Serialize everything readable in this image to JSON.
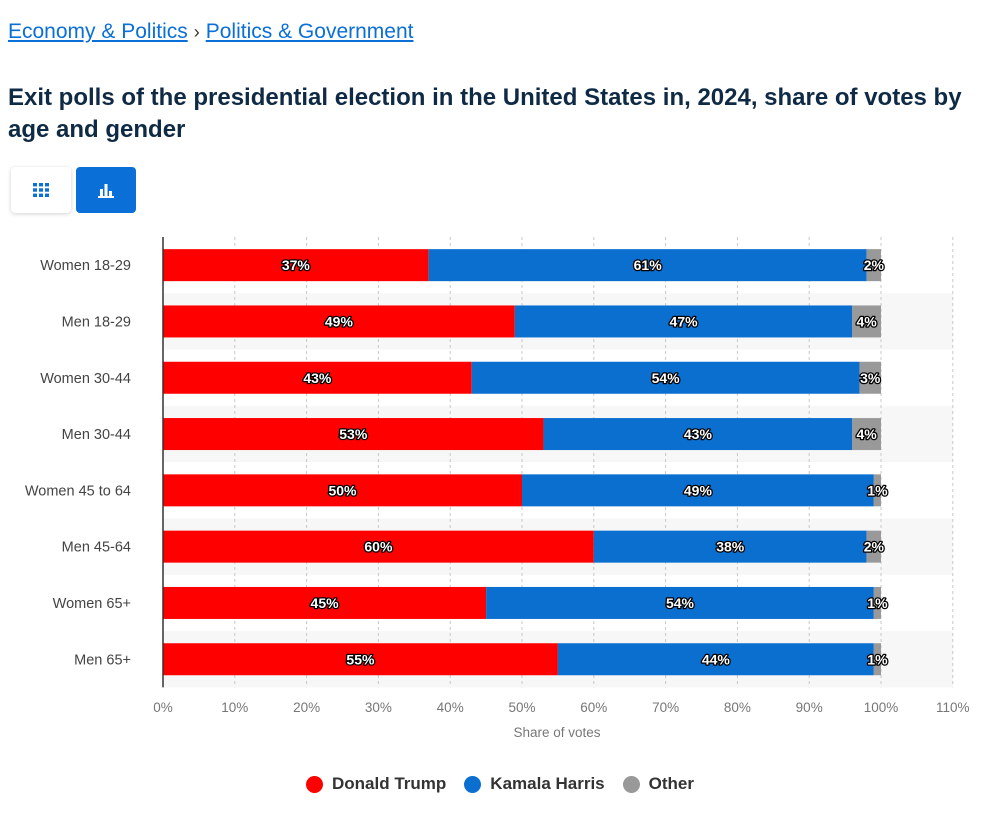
{
  "breadcrumb": {
    "item1": "Economy & Politics",
    "separator": "›",
    "item2": "Politics & Government"
  },
  "title": "Exit polls of the presidential election in the United States in, 2024, share of votes by age and gender",
  "view_toggle": {
    "table_icon": "grid-icon",
    "chart_icon": "bar-chart-icon"
  },
  "legend": [
    {
      "label": "Donald Trump",
      "color": "#ff0000"
    },
    {
      "label": "Kamala Harris",
      "color": "#0b6fd0"
    },
    {
      "label": "Other",
      "color": "#999999"
    }
  ],
  "chart_data": {
    "type": "bar",
    "orientation": "horizontal",
    "stacked": true,
    "categories": [
      "Women 18-29",
      "Men 18-29",
      "Women 30-44",
      "Men 30-44",
      "Women 45 to 64",
      "Men 45-64",
      "Women 65+",
      "Men 65+"
    ],
    "series": [
      {
        "name": "Donald Trump",
        "color": "#ff0000",
        "values": [
          37,
          49,
          43,
          53,
          50,
          60,
          45,
          55
        ]
      },
      {
        "name": "Kamala Harris",
        "color": "#0b6fd0",
        "values": [
          61,
          47,
          54,
          43,
          49,
          38,
          54,
          44
        ]
      },
      {
        "name": "Other",
        "color": "#999999",
        "values": [
          2,
          4,
          3,
          4,
          1,
          2,
          1,
          1
        ]
      }
    ],
    "value_suffix": "%",
    "xlabel": "Share of votes",
    "ylabel": "",
    "xlim": [
      0,
      110
    ],
    "xticks": [
      "0%",
      "10%",
      "20%",
      "30%",
      "40%",
      "50%",
      "60%",
      "70%",
      "80%",
      "90%",
      "100%",
      "110%"
    ],
    "grid": true
  }
}
